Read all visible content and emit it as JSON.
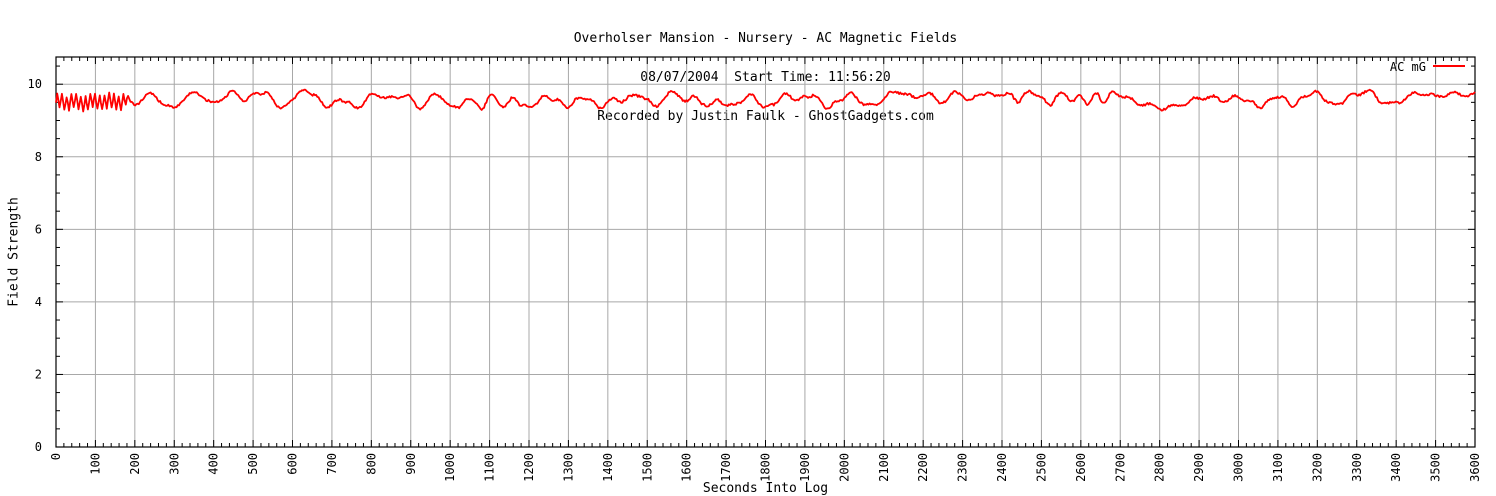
{
  "page": {
    "background": "#ffffff"
  },
  "chart_data": {
    "type": "line",
    "title_lines": [
      "Overholser Mansion - Nursery - AC Magnetic Fields",
      "08/07/2004  Start Time: 11:56:20",
      "Recorded by Justin Faulk - GhostGadgets.com"
    ],
    "xlabel": "Seconds Into Log",
    "ylabel": "Field Strength",
    "xlim": [
      0,
      3600
    ],
    "ylim": [
      0,
      10.75
    ],
    "x_ticks": [
      0,
      100,
      200,
      300,
      400,
      500,
      600,
      700,
      800,
      900,
      1000,
      1100,
      1200,
      1300,
      1400,
      1500,
      1600,
      1700,
      1800,
      1900,
      2000,
      2100,
      2200,
      2300,
      2400,
      2500,
      2600,
      2700,
      2800,
      2900,
      3000,
      3100,
      3200,
      3300,
      3400,
      3500,
      3600
    ],
    "x_minor_tick_interval_s": 20,
    "y_ticks": [
      0,
      2,
      4,
      6,
      8,
      10
    ],
    "y_minor_tick_interval": 0.5,
    "x_tick_labels_rotated": true,
    "grid": true,
    "legend": {
      "position": "top-right-inside",
      "entries": [
        {
          "label": "AC mG",
          "color": "#ff0000"
        }
      ]
    },
    "colors": {
      "line": "#ff0000",
      "grid": "#a8a8a8",
      "axis": "#000000",
      "text": "#000000",
      "background": "#ffffff"
    },
    "series": [
      {
        "name": "AC mG",
        "color": "#ff0000",
        "x_start_s": 0,
        "sample_interval_s": 20,
        "y_samples": [
          9.52,
          9.5,
          9.53,
          9.49,
          9.52,
          9.5,
          9.54,
          9.5,
          9.52,
          9.55,
          9.45,
          9.6,
          9.72,
          9.6,
          9.4,
          9.35,
          9.55,
          9.7,
          9.75,
          9.6,
          9.45,
          9.6,
          9.75,
          9.72,
          9.55,
          9.7,
          9.78,
          9.7,
          9.45,
          9.35,
          9.6,
          9.78,
          9.8,
          9.65,
          9.45,
          9.4,
          9.6,
          9.5,
          9.35,
          9.5,
          9.7,
          9.72,
          9.6,
          9.65,
          9.7,
          9.6,
          9.35,
          9.5,
          9.7,
          9.65,
          9.4,
          9.35,
          9.6,
          9.5,
          9.35,
          9.65,
          9.55,
          9.4,
          9.6,
          9.45,
          9.35,
          9.5,
          9.65,
          9.6,
          9.5,
          9.4,
          9.55,
          9.65,
          9.5,
          9.38,
          9.5,
          9.6,
          9.55,
          9.65,
          9.72,
          9.55,
          9.4,
          9.6,
          9.75,
          9.7,
          9.55,
          9.62,
          9.5,
          9.42,
          9.55,
          9.45,
          9.4,
          9.55,
          9.68,
          9.55,
          9.35,
          9.45,
          9.65,
          9.7,
          9.55,
          9.65,
          9.7,
          9.5,
          9.35,
          9.5,
          9.65,
          9.7,
          9.55,
          9.4,
          9.45,
          9.6,
          9.75,
          9.8,
          9.7,
          9.6,
          9.75,
          9.7,
          9.5,
          9.6,
          9.75,
          9.7,
          9.55,
          9.7,
          9.78,
          9.65,
          9.75,
          9.7,
          9.55,
          9.72,
          9.78,
          9.6,
          9.45,
          9.65,
          9.75,
          9.5,
          9.7,
          9.45,
          9.75,
          9.5,
          9.78,
          9.7,
          9.6,
          9.5,
          9.45,
          9.4,
          9.35,
          9.35,
          9.4,
          9.45,
          9.55,
          9.6,
          9.65,
          9.62,
          9.55,
          9.6,
          9.65,
          9.55,
          9.45,
          9.4,
          9.55,
          9.68,
          9.55,
          9.42,
          9.6,
          9.72,
          9.75,
          9.6,
          9.42,
          9.5,
          9.65,
          9.72,
          9.8,
          9.75,
          9.55,
          9.45,
          9.5,
          9.6,
          9.7,
          9.75,
          9.72,
          9.65,
          9.7,
          9.75,
          9.72,
          9.7,
          9.72
        ],
        "initial_fast_oscillation": {
          "t_range_s": [
            0,
            190
          ],
          "period_s": 12,
          "amplitude": 0.2
        },
        "texture_oscillation": {
          "period_s": 47,
          "amplitude": 0.05
        },
        "noise_amplitude": 0.03,
        "summary": {
          "approx_mean_mG": 9.55,
          "approx_min_mG": 9.25,
          "approx_max_mG": 9.85
        }
      }
    ]
  }
}
